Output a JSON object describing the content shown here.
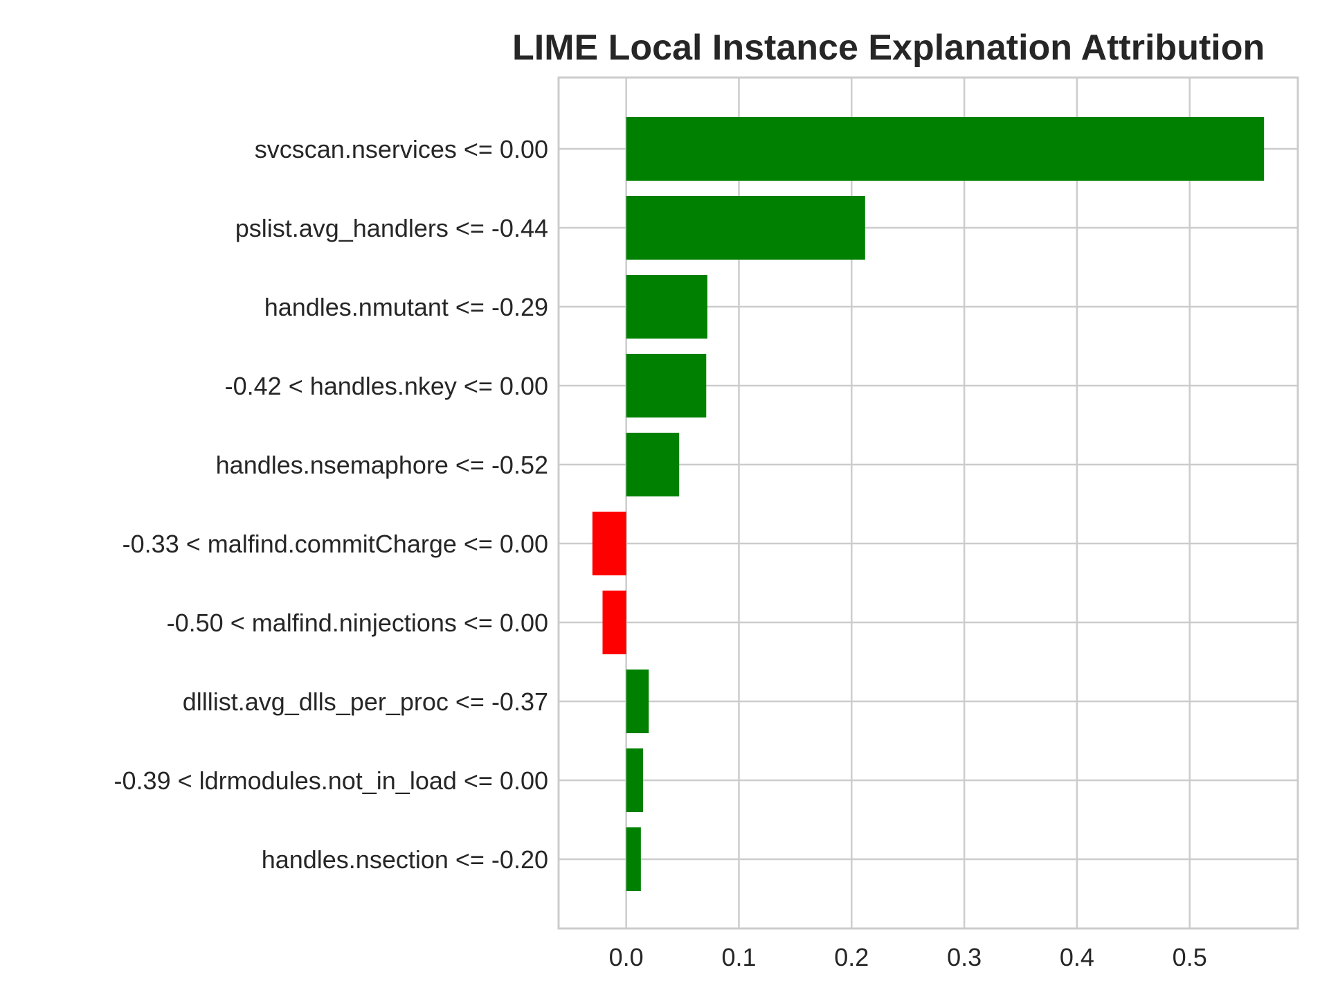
{
  "chart_data": {
    "type": "bar",
    "orientation": "horizontal",
    "title": "LIME Local Instance Explanation Attribution",
    "xlabel": "",
    "ylabel": "",
    "categories": [
      "svcscan.nservices <= 0.00",
      "pslist.avg_handlers <= -0.44",
      "handles.nmutant <= -0.29",
      "-0.42 < handles.nkey <= 0.00",
      "handles.nsemaphore <= -0.52",
      "-0.33 < malfind.commitCharge <= 0.00",
      "-0.50 < malfind.ninjections <= 0.00",
      "dlllist.avg_dlls_per_proc <= -0.37",
      "-0.39 < ldrmodules.not_in_load <= 0.00",
      "handles.nsection <= -0.20"
    ],
    "values": [
      0.566,
      0.212,
      0.072,
      0.071,
      0.047,
      -0.03,
      -0.021,
      0.02,
      0.015,
      0.013
    ],
    "xlim": [
      -0.06,
      0.596
    ],
    "xticks": [
      0.0,
      0.1,
      0.2,
      0.3,
      0.4,
      0.5
    ],
    "xtick_labels": [
      "0.0",
      "0.1",
      "0.2",
      "0.3",
      "0.4",
      "0.5"
    ],
    "grid": true,
    "colors": {
      "positive": "#008000",
      "negative": "#ff0000",
      "grid": "#cccccc",
      "frame": "#cccccc",
      "text": "#262626"
    }
  }
}
